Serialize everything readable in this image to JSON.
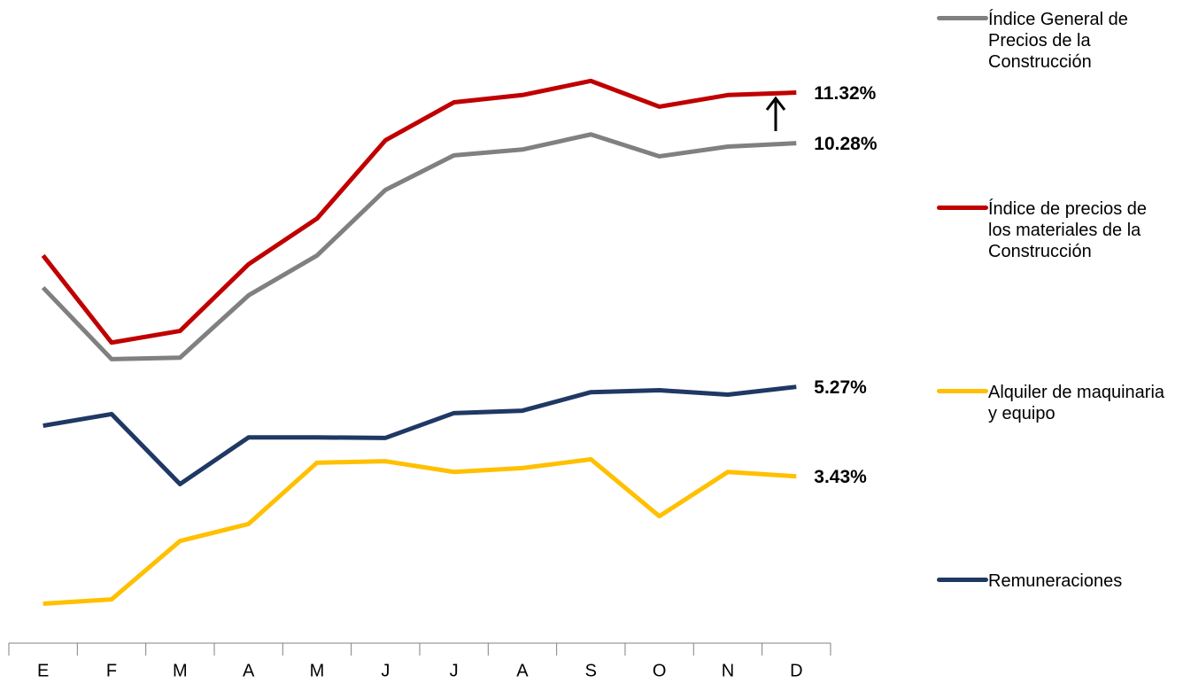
{
  "chart_data": {
    "type": "line",
    "categories": [
      "E",
      "F",
      "M",
      "A",
      "M",
      "J",
      "J",
      "A",
      "S",
      "O",
      "N",
      "D"
    ],
    "ylim": [
      0,
      13
    ],
    "legend": "right",
    "series": [
      {
        "name": "Índice General de Precios de la Construcción",
        "color": "#808080",
        "values": [
          7.31,
          5.84,
          5.87,
          7.15,
          7.97,
          9.32,
          10.03,
          10.15,
          10.46,
          10.01,
          10.21,
          10.28
        ],
        "value_labels": [
          null,
          null,
          null,
          null,
          null,
          null,
          null,
          null,
          null,
          null,
          null,
          "10.28%"
        ]
      },
      {
        "name": "Índice de precios de los materiales de la Construcción",
        "color": "#c00000",
        "values": [
          7.97,
          6.18,
          6.42,
          7.79,
          8.73,
          10.34,
          11.12,
          11.27,
          11.56,
          11.03,
          11.27,
          11.32
        ],
        "value_labels": [
          null,
          null,
          null,
          null,
          null,
          null,
          null,
          null,
          null,
          null,
          null,
          "11.32%"
        ]
      },
      {
        "name": "Alquiler de maquinaria y equipo",
        "color": "#ffc000",
        "values": [
          0.81,
          0.9,
          2.1,
          2.45,
          3.71,
          3.74,
          3.52,
          3.6,
          3.78,
          2.61,
          3.52,
          3.43
        ],
        "value_labels": [
          null,
          null,
          null,
          null,
          null,
          null,
          null,
          null,
          null,
          null,
          null,
          "3.43%"
        ]
      },
      {
        "name": "Remuneraciones",
        "color": "#1f3864",
        "values": [
          4.47,
          4.71,
          3.27,
          4.23,
          4.23,
          4.22,
          4.73,
          4.78,
          5.16,
          5.2,
          5.11,
          5.27
        ],
        "value_labels": [
          null,
          null,
          null,
          null,
          null,
          null,
          null,
          null,
          null,
          null,
          null,
          "5.27%"
        ]
      }
    ]
  }
}
